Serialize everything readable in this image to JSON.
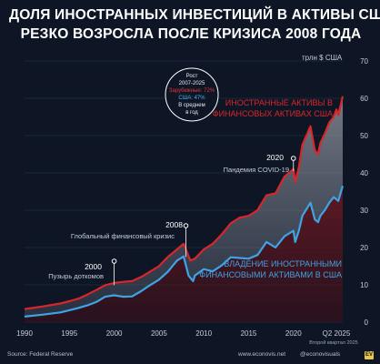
{
  "chart_data": {
    "type": "area",
    "title_lines": [
      "ДОЛЯ ИНОСТРАННЫХ ИНВЕСТИЦИЙ В АКТИВЫ США",
      "РЕЗКО ВОЗРОСЛА ПОСЛЕ КРИЗИСА 2008 ГОДА"
    ],
    "ylabel": "трлн $ США",
    "ylim": [
      0,
      70
    ],
    "yticks": [
      0,
      10,
      20,
      30,
      40,
      50,
      60,
      70
    ],
    "xlim": [
      1990,
      2025.5
    ],
    "xticks": [
      1990,
      1995,
      2000,
      2005,
      2010,
      2015,
      2020
    ],
    "last_tick_label": "Q2 2025",
    "last_tick_sub": "Второй квартал 2025",
    "series": [
      {
        "name": "ИНОСТРАННЫЕ АКТИВЫ В ФИНАНСОВЫХ АКТИВАХ США",
        "name_lines": [
          "ИНОСТРАННЫЕ АКТИВЫ В",
          "ФИНАНСОВЫХ АКТИВАХ США"
        ],
        "color": "#d8262b",
        "points": [
          [
            1990,
            3.5
          ],
          [
            1992,
            4.2
          ],
          [
            1994,
            5.0
          ],
          [
            1995,
            5.6
          ],
          [
            1996,
            6.3
          ],
          [
            1997,
            7.4
          ],
          [
            1998,
            8.6
          ],
          [
            1999,
            9.9
          ],
          [
            2000,
            10.5
          ],
          [
            2001,
            10.8
          ],
          [
            2002,
            11.0
          ],
          [
            2003,
            12.1
          ],
          [
            2004,
            13.5
          ],
          [
            2005,
            15.0
          ],
          [
            2006,
            17.5
          ],
          [
            2007,
            19.5
          ],
          [
            2007.75,
            21.0
          ],
          [
            2008.5,
            16.5
          ],
          [
            2009,
            17.0
          ],
          [
            2010,
            19.5
          ],
          [
            2011,
            21.0
          ],
          [
            2012,
            23.5
          ],
          [
            2013,
            26.5
          ],
          [
            2014,
            28.0
          ],
          [
            2015,
            28.5
          ],
          [
            2016,
            30.0
          ],
          [
            2017,
            34.0
          ],
          [
            2018,
            34.5
          ],
          [
            2019,
            39.0
          ],
          [
            2020,
            41.0
          ],
          [
            2020.2,
            37.5
          ],
          [
            2020.6,
            41.5
          ],
          [
            2021,
            47.5
          ],
          [
            2021.9,
            52.5
          ],
          [
            2022.4,
            46.0
          ],
          [
            2022.75,
            45.0
          ],
          [
            2023,
            48.0
          ],
          [
            2023.5,
            50.5
          ],
          [
            2024,
            53.5
          ],
          [
            2024.5,
            55.0
          ],
          [
            2024.8,
            57.0
          ],
          [
            2025,
            55.5
          ],
          [
            2025.5,
            60.5
          ]
        ]
      },
      {
        "name": "ВЛАДЕНИЕ ИНОСТРАННЫМИ ФИНАНСОВЫМИ АКТИВАМИ В США",
        "name_lines": [
          "ВЛАДЕНИЕ ИНОСТРАННЫМИ",
          "ФИНАНСОВЫМИ АКТИВАМИ В США"
        ],
        "color": "#3ea4e6",
        "points": [
          [
            1990,
            1.5
          ],
          [
            1992,
            2.0
          ],
          [
            1994,
            2.6
          ],
          [
            1995,
            3.2
          ],
          [
            1996,
            3.8
          ],
          [
            1997,
            4.5
          ],
          [
            1998,
            5.4
          ],
          [
            1999,
            6.8
          ],
          [
            2000,
            7.2
          ],
          [
            2001,
            6.8
          ],
          [
            2002,
            6.9
          ],
          [
            2003,
            8.3
          ],
          [
            2004,
            9.9
          ],
          [
            2005,
            11.4
          ],
          [
            2006,
            13.5
          ],
          [
            2007,
            16.5
          ],
          [
            2007.75,
            17.6
          ],
          [
            2008.3,
            12.5
          ],
          [
            2008.8,
            11.0
          ],
          [
            2009,
            12.5
          ],
          [
            2010,
            14.2
          ],
          [
            2011,
            13.6
          ],
          [
            2012,
            15.2
          ],
          [
            2013,
            17.4
          ],
          [
            2014,
            17.2
          ],
          [
            2015,
            17.0
          ],
          [
            2016,
            18.0
          ],
          [
            2017,
            21.5
          ],
          [
            2018,
            20.0
          ],
          [
            2019,
            23.0
          ],
          [
            2020,
            24.5
          ],
          [
            2020.2,
            21.5
          ],
          [
            2020.6,
            24.5
          ],
          [
            2021,
            28.5
          ],
          [
            2021.9,
            32.0
          ],
          [
            2022.4,
            27.5
          ],
          [
            2022.75,
            26.8
          ],
          [
            2023,
            28.5
          ],
          [
            2023.5,
            30.0
          ],
          [
            2024,
            32.0
          ],
          [
            2024.5,
            33.5
          ],
          [
            2025,
            32.5
          ],
          [
            2025.5,
            36.5
          ]
        ]
      }
    ],
    "annotations": [
      {
        "year": "2000",
        "text": "Пузырь доткомов",
        "x": 2000,
        "y": 9.9
      },
      {
        "year": "2008",
        "text": "Глобальный финансовый кризис",
        "x": 2008,
        "y": 17.5
      },
      {
        "year": "2020",
        "text": "Пандемия COVID-19",
        "x": 2020,
        "y": 40.5
      }
    ],
    "growth_box": {
      "lines": [
        "Рост",
        "2007-2025",
        "Зарубежные: 72%",
        "США: 47%",
        "В среднем",
        "в год"
      ]
    }
  },
  "footer": {
    "source": "Source: Federal Reserve",
    "website": "www.econovis.net",
    "handle": "@econovisuals",
    "badge": "EV"
  },
  "colors": {
    "background": "#0e1626",
    "foreign_line": "#d8262b",
    "us_line": "#3ea4e6",
    "growth_foreign": "#e0353a",
    "growth_us": "#47b4ee"
  }
}
